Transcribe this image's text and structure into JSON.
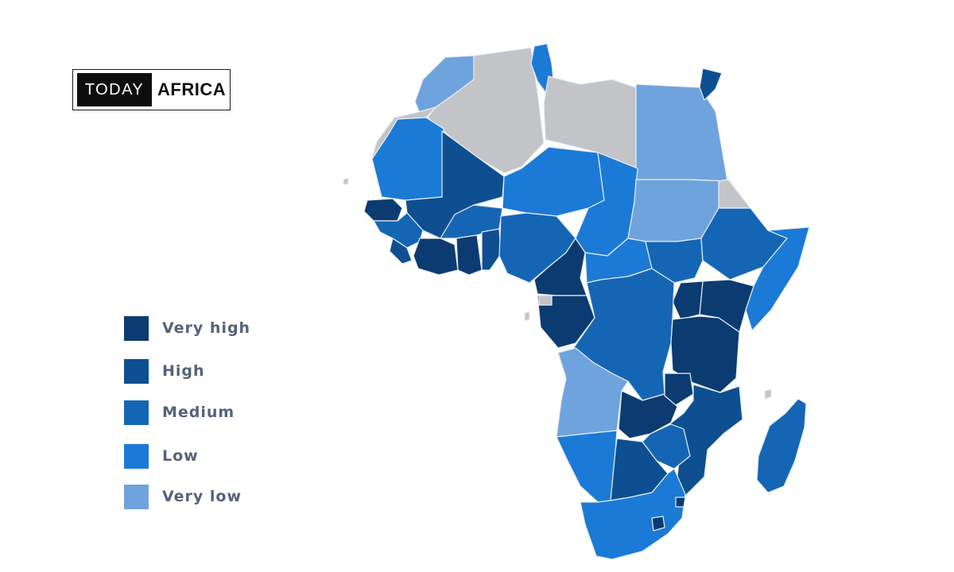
{
  "brand": {
    "today": "TODAY",
    "africa": "AFRICA"
  },
  "colors": {
    "very_high": "#0b3b70",
    "high": "#0e4f91",
    "medium": "#1466b5",
    "low": "#1b7ad6",
    "very_low": "#6fa3de",
    "no_data": "#c3c4c8"
  },
  "legend": [
    {
      "label": "Very high",
      "level": "very_high"
    },
    {
      "label": "High",
      "level": "high"
    },
    {
      "label": "Medium",
      "level": "medium"
    },
    {
      "label": "Low",
      "level": "low"
    },
    {
      "label": "Very low",
      "level": "very_low"
    }
  ]
}
